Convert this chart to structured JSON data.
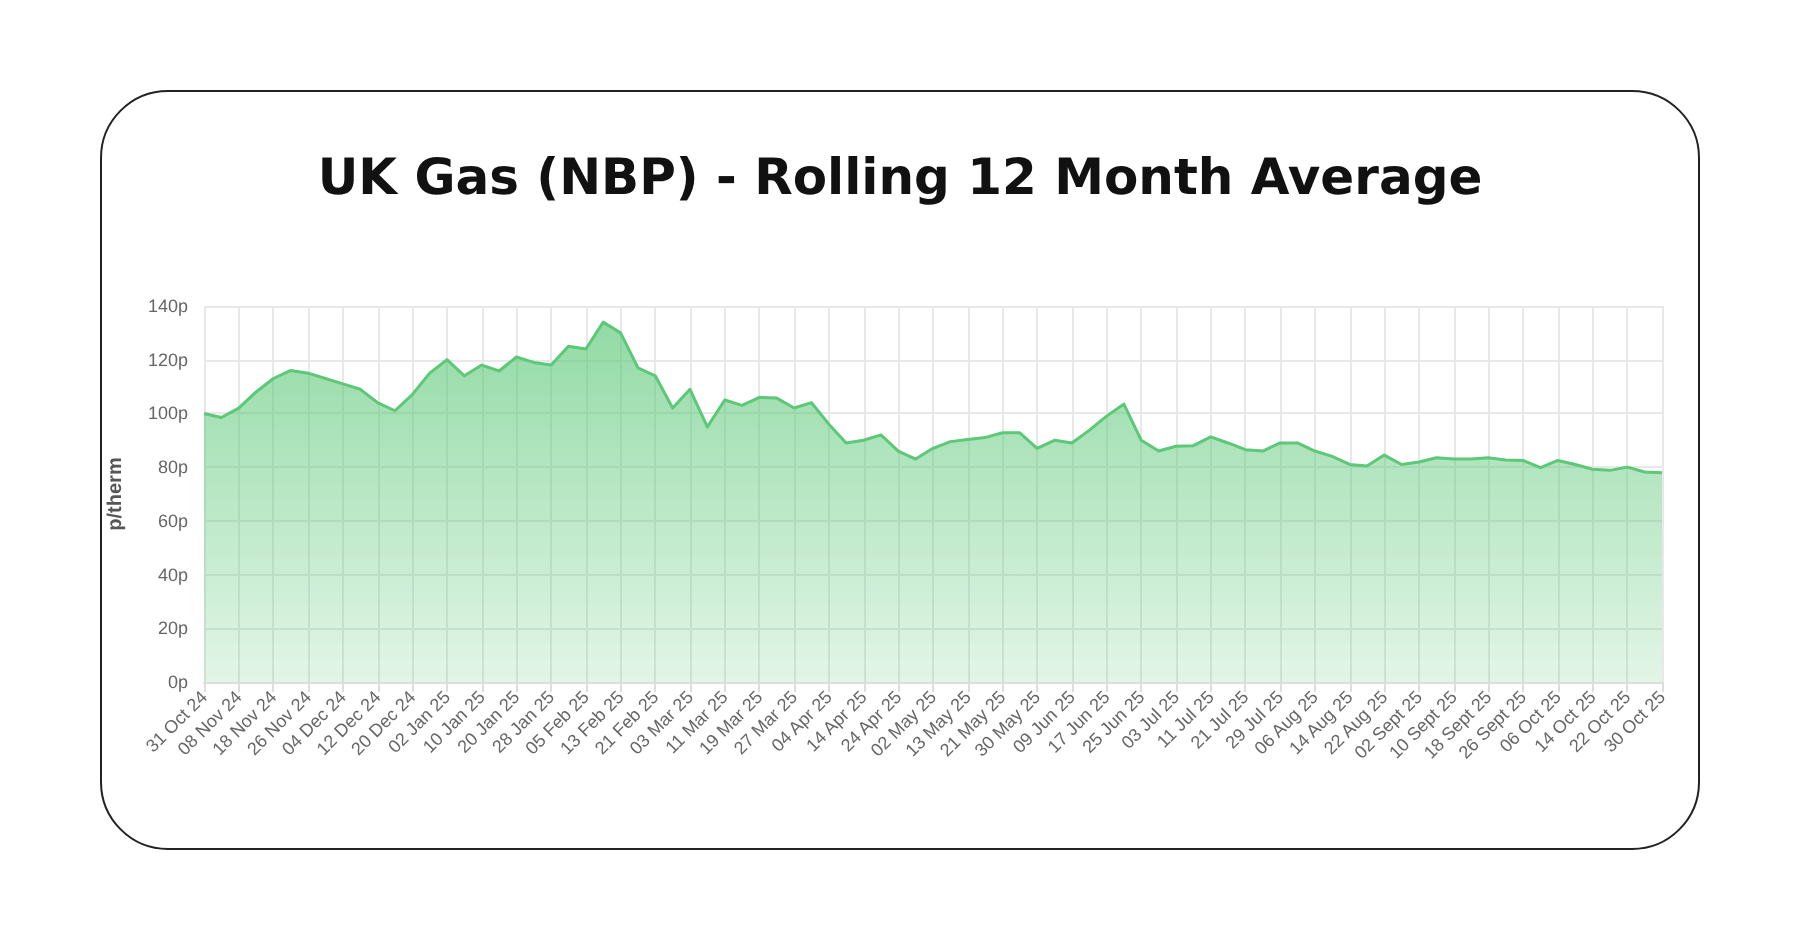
{
  "chart_data": {
    "type": "area",
    "title": "UK Gas (NBP) - Rolling 12 Month Average",
    "ylabel": "p/therm",
    "categories": [
      "31 Oct 24",
      null,
      "08 Nov 24",
      null,
      "18 Nov 24",
      null,
      "26 Nov 24",
      null,
      "04 Dec 24",
      null,
      "12 Dec 24",
      null,
      "20 Dec 24",
      null,
      "02 Jan 25",
      null,
      "10 Jan 25",
      null,
      "20 Jan 25",
      null,
      "28 Jan 25",
      null,
      "05 Feb 25",
      null,
      "13 Feb 25",
      null,
      "21 Feb 25",
      null,
      "03 Mar 25",
      null,
      "11 Mar 25",
      null,
      "19 Mar 25",
      null,
      "27 Mar 25",
      null,
      "04 Apr 25",
      null,
      "14 Apr 25",
      null,
      "24 Apr 25",
      null,
      "02 May 25",
      null,
      "13 May 25",
      null,
      "21 May 25",
      null,
      "30 May 25",
      null,
      "09 Jun 25",
      null,
      "17 Jun 25",
      null,
      "25 Jun 25",
      null,
      "03 Jul 25",
      null,
      "11 Jul 25",
      null,
      "21 Jul 25",
      null,
      "29 Jul 25",
      null,
      "06 Aug 25",
      null,
      "14 Aug 25",
      null,
      "22 Aug 25",
      null,
      "02 Sept 25",
      null,
      "10 Sept 25",
      null,
      "18 Sept 25",
      null,
      "26 Sept 25",
      null,
      "06 Oct 25",
      null,
      "14 Oct 25",
      null,
      "22 Oct 25",
      null,
      "30 Oct 25"
    ],
    "series": [
      {
        "color": "#5cc878",
        "values": [
          100,
          98.5,
          102,
          108,
          113,
          116,
          115,
          113,
          111,
          109,
          104,
          101,
          107,
          115,
          120,
          114,
          118,
          115.8,
          121,
          119,
          118,
          125,
          124,
          134,
          130,
          117,
          114,
          102,
          109,
          95,
          105,
          103,
          106,
          105.7,
          102,
          104,
          96,
          89,
          90,
          92,
          86,
          83,
          87,
          89.5,
          90.3,
          91,
          92.8,
          92.8,
          87,
          90,
          89,
          93.7,
          99,
          103.5,
          90,
          86,
          87.8,
          88,
          91.3,
          89,
          86.5,
          86,
          89,
          89,
          86,
          84,
          81,
          80.4,
          84.5,
          81,
          81.9,
          83.5,
          83,
          83,
          83.5,
          82.7,
          82.5,
          79.8,
          82.5,
          81,
          79.2,
          78.8,
          80,
          78.2,
          77.9
        ]
      }
    ],
    "ylim": [
      0,
      140
    ],
    "yticks": [
      {
        "value": 0,
        "label": "0p"
      },
      {
        "value": 20,
        "label": "20p"
      },
      {
        "value": 40,
        "label": "40p"
      },
      {
        "value": 60,
        "label": "60p"
      },
      {
        "value": 80,
        "label": "80p"
      },
      {
        "value": 100,
        "label": "100p"
      },
      {
        "value": 120,
        "label": "120p"
      },
      {
        "value": 140,
        "label": "140p"
      }
    ],
    "grid": true,
    "marker": "none",
    "line_style": "solid"
  }
}
